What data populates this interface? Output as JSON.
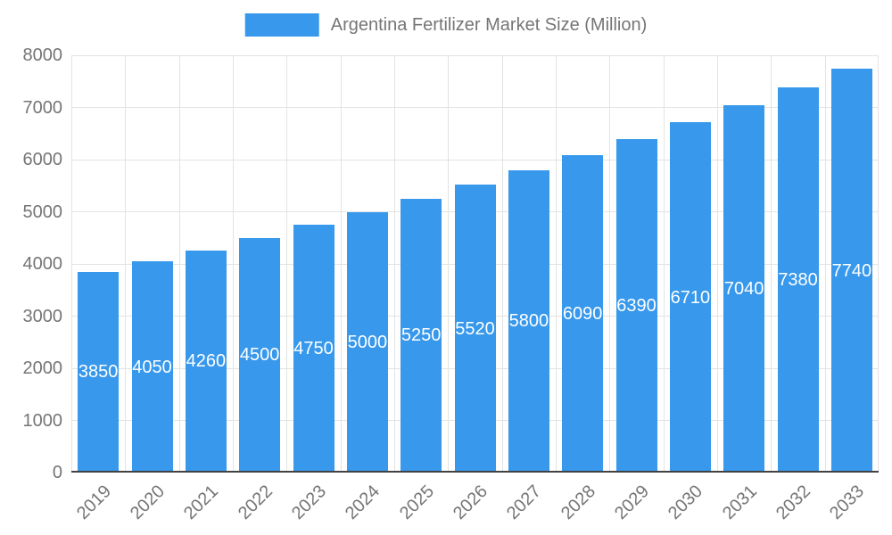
{
  "chart_data": {
    "type": "bar",
    "title": "Argentina Fertilizer Market Size (Million)",
    "categories": [
      "2019",
      "2020",
      "2021",
      "2022",
      "2023",
      "2024",
      "2025",
      "2026",
      "2027",
      "2028",
      "2029",
      "2030",
      "2031",
      "2032",
      "2033"
    ],
    "values": [
      3850,
      4050,
      4260,
      4500,
      4750,
      5000,
      5250,
      5520,
      5800,
      6090,
      6390,
      6710,
      7040,
      7380,
      7740
    ],
    "value_labels": [
      "3850",
      "4050",
      "4260",
      "4500",
      "4750",
      "5000",
      "5250",
      "5520",
      "5800",
      "6090",
      "6390",
      "6710",
      "7040",
      "7380",
      "7740"
    ],
    "xlabel": "",
    "ylabel": "",
    "ylim": [
      0,
      8000
    ],
    "ytick_labels": [
      "0",
      "1000",
      "2000",
      "3000",
      "4000",
      "5000",
      "6000",
      "7000",
      "8000"
    ],
    "grid": "on",
    "legend_position": "top-center",
    "colors": {
      "bar": "#3798EC",
      "value_label_text": "#FFFFFF",
      "axis_text": "#757575",
      "gridline": "#E3E3E3",
      "axis_line": "#424242",
      "background": "#FFFFFF"
    }
  }
}
